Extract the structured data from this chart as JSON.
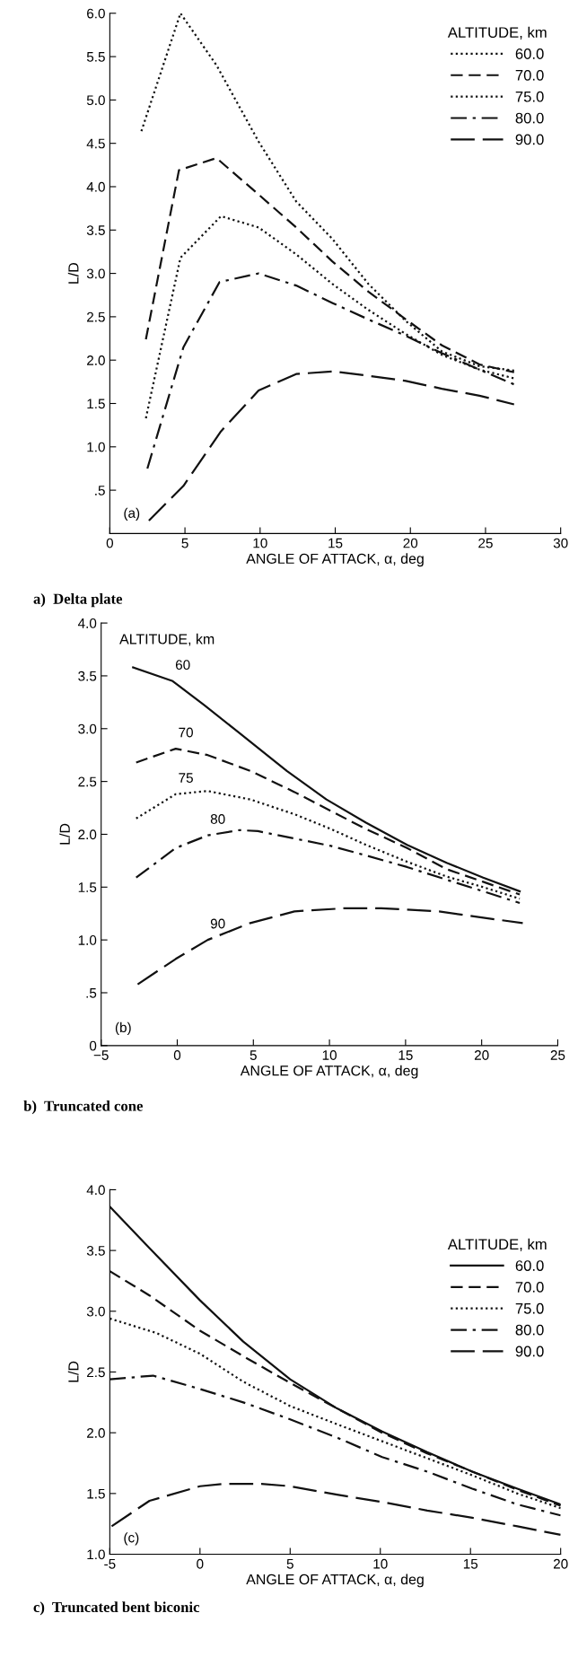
{
  "chart_data": [
    {
      "type": "line",
      "title": "a)  Delta plate",
      "xlabel": "ANGLE OF ATTACK, α, deg",
      "ylabel": "L/D",
      "legend_title": "ALTITUDE, km",
      "legend": "top right",
      "grid": false,
      "xlim": [
        0,
        30
      ],
      "xticks": [
        0,
        5,
        10,
        15,
        20,
        25,
        30
      ],
      "ylim": [
        0,
        6
      ],
      "yticks": [
        {
          "value": 0.5,
          "label": ".5"
        },
        {
          "value": 1,
          "label": "1.0"
        },
        {
          "value": 1.5,
          "label": "1.5"
        },
        {
          "value": 2,
          "label": "2.0"
        },
        {
          "value": 2.5,
          "label": "2.5"
        },
        {
          "value": 3,
          "label": "3.0"
        },
        {
          "value": 3.5,
          "label": "3.5"
        },
        {
          "value": 4,
          "label": "4.0"
        },
        {
          "value": 4.5,
          "label": "4.5"
        },
        {
          "value": 5,
          "label": "5.0"
        },
        {
          "value": 5.5,
          "label": "5.5"
        },
        {
          "value": 6,
          "label": "6.0"
        }
      ],
      "annotations": [
        "(a)"
      ],
      "series": [
        {
          "name": "60.0",
          "color": "#111111",
          "line_style": "dotted",
          "x": [
            2.1,
            4.7,
            7.1,
            9.9,
            12.4,
            14.8,
            17.2,
            19.7,
            22.1,
            24.6,
            26.9
          ],
          "values": [
            4.64,
            6.0,
            5.4,
            4.52,
            3.83,
            3.4,
            2.88,
            2.45,
            2.1,
            1.93,
            1.88
          ]
        },
        {
          "name": "70.0",
          "color": "#111111",
          "line_style": "dashed",
          "x": [
            2.4,
            4.6,
            7.1,
            9.9,
            12.4,
            14.8,
            17.2,
            19.7,
            22.1,
            24.6,
            26.9
          ],
          "values": [
            2.24,
            4.19,
            4.33,
            3.91,
            3.53,
            3.14,
            2.79,
            2.47,
            2.17,
            1.95,
            1.86
          ]
        },
        {
          "name": "75.0",
          "color": "#111111",
          "line_style": "dotted",
          "x": [
            2.4,
            4.7,
            7.4,
            9.9,
            12.4,
            14.8,
            17.2,
            19.7,
            22.1,
            24.6,
            26.9
          ],
          "values": [
            1.33,
            3.18,
            3.66,
            3.53,
            3.22,
            2.88,
            2.58,
            2.3,
            2.06,
            1.89,
            1.79
          ]
        },
        {
          "name": "80.0",
          "color": "#111111",
          "line_style": "dashdot",
          "x": [
            2.5,
            4.9,
            7.3,
            9.9,
            12.4,
            14.8,
            17.2,
            19.7,
            22.1,
            24.6,
            26.9
          ],
          "values": [
            0.75,
            2.15,
            2.9,
            3.0,
            2.86,
            2.66,
            2.47,
            2.28,
            2.08,
            1.89,
            1.72
          ]
        },
        {
          "name": "90.0",
          "color": "#111111",
          "line_style": "longdash",
          "x": [
            2.6,
            4.9,
            7.4,
            9.9,
            12.4,
            14.9,
            17.2,
            19.7,
            22.1,
            24.6,
            26.9
          ],
          "values": [
            0.15,
            0.55,
            1.18,
            1.65,
            1.84,
            1.87,
            1.82,
            1.76,
            1.67,
            1.59,
            1.49
          ]
        }
      ]
    },
    {
      "type": "line",
      "title": "b)  Truncated cone",
      "xlabel": "ANGLE OF ATTACK, α, deg",
      "ylabel": "L/D",
      "grid": false,
      "xlim": [
        -5,
        25
      ],
      "xticks": [
        {
          "value": -5,
          "label": "−5"
        },
        0,
        5,
        10,
        15,
        20,
        25
      ],
      "ylim": [
        0,
        4
      ],
      "yticks": [
        0,
        {
          "value": 0.5,
          "label": ".5"
        },
        {
          "value": 1,
          "label": "1.0"
        },
        {
          "value": 1.5,
          "label": "1.5"
        },
        {
          "value": 2,
          "label": "2.0"
        },
        {
          "value": 2.5,
          "label": "2.5"
        },
        {
          "value": 3,
          "label": "3.0"
        },
        {
          "value": 3.5,
          "label": "3.5"
        },
        {
          "value": 4,
          "label": "4.0"
        }
      ],
      "annotations": [
        "ALTITUDE, km",
        "(b)",
        {
          "text": "60",
          "x": -0.3,
          "y": 3.45
        },
        {
          "text": "70",
          "x": -0.1,
          "y": 2.81
        },
        {
          "text": "75",
          "x": -0.1,
          "y": 2.38
        },
        {
          "text": "80",
          "x": 2.0,
          "y": 1.99
        },
        {
          "text": "90",
          "x": 2.0,
          "y": 1.0
        }
      ],
      "series": [
        {
          "color": "#111111",
          "line_style": "solid",
          "x": [
            -2.9,
            -0.3,
            1.8,
            3.9,
            7.2,
            9.8,
            12.4,
            15.1,
            17.7,
            20.1,
            22.5
          ],
          "values": [
            3.58,
            3.45,
            3.22,
            2.98,
            2.6,
            2.33,
            2.11,
            1.9,
            1.73,
            1.59,
            1.46
          ]
        },
        {
          "color": "#111111",
          "line_style": "dashed",
          "x": [
            -2.7,
            -0.1,
            2.0,
            4.8,
            7.7,
            10.1,
            12.4,
            15.1,
            17.7,
            20.1,
            22.5
          ],
          "values": [
            2.68,
            2.81,
            2.75,
            2.6,
            2.4,
            2.22,
            2.05,
            1.87,
            1.67,
            1.55,
            1.43
          ]
        },
        {
          "color": "#111111",
          "line_style": "dotted",
          "x": [
            -2.7,
            -0.1,
            2.0,
            4.8,
            7.7,
            10.1,
            12.4,
            15.1,
            17.7,
            20.1,
            22.5
          ],
          "values": [
            2.15,
            2.38,
            2.41,
            2.33,
            2.19,
            2.05,
            1.9,
            1.74,
            1.6,
            1.5,
            1.39
          ]
        },
        {
          "color": "#111111",
          "line_style": "dashdot",
          "x": [
            -2.7,
            -0.1,
            2.0,
            4.1,
            5.3,
            7.7,
            10.1,
            12.4,
            15.1,
            17.7,
            20.1,
            22.5
          ],
          "values": [
            1.59,
            1.87,
            1.99,
            2.04,
            2.03,
            1.96,
            1.89,
            1.8,
            1.69,
            1.57,
            1.46,
            1.35
          ]
        },
        {
          "color": "#111111",
          "line_style": "longdash",
          "x": [
            -2.6,
            -0.1,
            2.0,
            4.8,
            7.7,
            11.0,
            13.4,
            17.2,
            20.1,
            22.7
          ],
          "values": [
            0.58,
            0.82,
            1.0,
            1.16,
            1.27,
            1.3,
            1.3,
            1.27,
            1.21,
            1.16
          ]
        }
      ]
    },
    {
      "type": "line",
      "title": "c)  Truncated bent biconic",
      "xlabel": "ANGLE OF ATTACK, α, deg",
      "ylabel": "L/D",
      "legend_title": "ALTITUDE, km",
      "legend": "right",
      "grid": false,
      "xlim": [
        -5,
        20
      ],
      "xticks": [
        -5,
        0,
        5,
        10,
        15,
        20
      ],
      "ylim": [
        1,
        4
      ],
      "yticks": [
        {
          "value": 1,
          "label": "1.0"
        },
        {
          "value": 1.5,
          "label": "1.5"
        },
        {
          "value": 2,
          "label": "2.0"
        },
        {
          "value": 2.5,
          "label": "2.5"
        },
        {
          "value": 3,
          "label": "3.0"
        },
        {
          "value": 3.5,
          "label": "3.5"
        },
        {
          "value": 4,
          "label": "4.0"
        }
      ],
      "annotations": [
        "(c)"
      ],
      "series": [
        {
          "name": "60.0",
          "color": "#111111",
          "line_style": "solid",
          "x": [
            -5,
            -2.8,
            0,
            2.4,
            5,
            7.6,
            10.1,
            12.6,
            15.1,
            17.6,
            20
          ],
          "values": [
            3.86,
            3.52,
            3.09,
            2.75,
            2.44,
            2.2,
            2.01,
            1.84,
            1.68,
            1.54,
            1.41
          ]
        },
        {
          "name": "70.0",
          "color": "#111111",
          "line_style": "dashed",
          "x": [
            -5,
            -2.8,
            0,
            2.4,
            5,
            7.6,
            10.1,
            12.6,
            15.1,
            17.6,
            20
          ],
          "values": [
            3.33,
            3.13,
            2.84,
            2.63,
            2.41,
            2.2,
            2.0,
            1.83,
            1.68,
            1.53,
            1.4
          ]
        },
        {
          "name": "75.0",
          "color": "#111111",
          "line_style": "dotted",
          "x": [
            -5,
            -2.4,
            0,
            2.4,
            5,
            7.6,
            10.1,
            12.6,
            15.1,
            17.6,
            20
          ],
          "values": [
            2.94,
            2.82,
            2.65,
            2.42,
            2.22,
            2.07,
            1.93,
            1.79,
            1.65,
            1.5,
            1.38
          ]
        },
        {
          "name": "80.0",
          "color": "#111111",
          "line_style": "dashdot",
          "x": [
            -5,
            -2.6,
            0,
            2.4,
            5,
            7.6,
            10.1,
            12.6,
            15.1,
            17.6,
            20
          ],
          "values": [
            2.44,
            2.47,
            2.36,
            2.25,
            2.11,
            1.96,
            1.8,
            1.68,
            1.54,
            1.41,
            1.32
          ]
        },
        {
          "name": "90.0",
          "color": "#111111",
          "line_style": "longdash",
          "x": [
            -4.9,
            -2.8,
            0,
            1.35,
            3.4,
            5,
            7.6,
            10.1,
            12.6,
            15.1,
            17.6,
            20
          ],
          "values": [
            1.23,
            1.44,
            1.56,
            1.58,
            1.58,
            1.56,
            1.49,
            1.43,
            1.36,
            1.3,
            1.23,
            1.16
          ]
        }
      ]
    }
  ]
}
